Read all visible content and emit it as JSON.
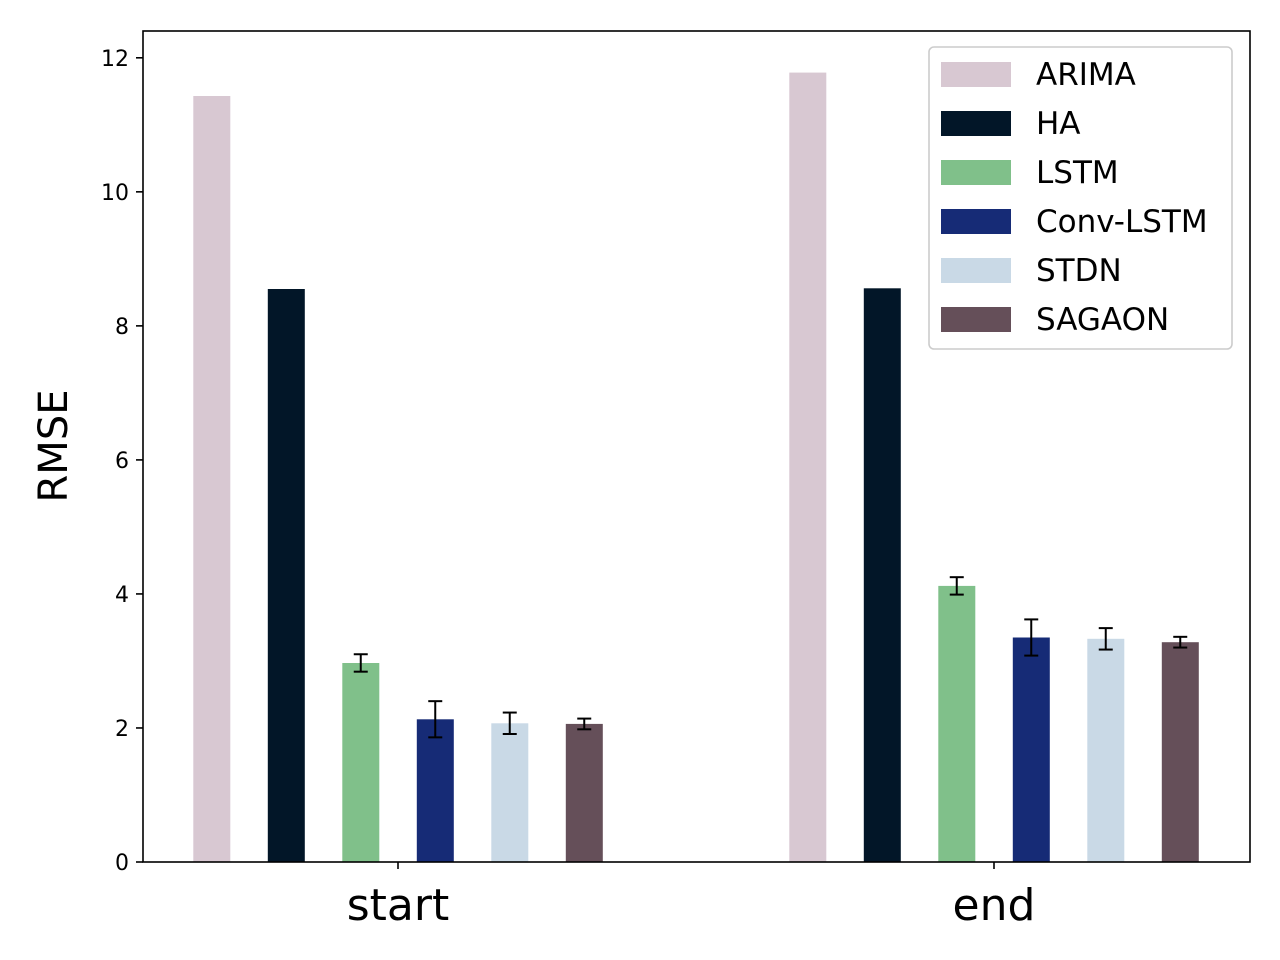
{
  "chart_data": {
    "type": "bar",
    "title": "",
    "xlabel": "",
    "ylabel": "RMSE",
    "categories": [
      "start",
      "end"
    ],
    "ylim": [
      0,
      12.4
    ],
    "yticks": [
      "0",
      "2",
      "4",
      "6",
      "8",
      "10",
      "12"
    ],
    "grid": false,
    "legend_position": "top-right",
    "series": [
      {
        "name": "ARIMA",
        "color": "#d8c8d2",
        "values": [
          11.43,
          11.78
        ],
        "errors": [
          0,
          0
        ]
      },
      {
        "name": "HA",
        "color": "#021628",
        "values": [
          8.55,
          8.56
        ],
        "errors": [
          0,
          0
        ]
      },
      {
        "name": "LSTM",
        "color": "#80c08a",
        "values": [
          2.97,
          4.12
        ],
        "errors": [
          0.13,
          0.13
        ]
      },
      {
        "name": "Conv-LSTM",
        "color": "#162b76",
        "values": [
          2.13,
          3.35
        ],
        "errors": [
          0.27,
          0.27
        ]
      },
      {
        "name": "STDN",
        "color": "#c9d9e6",
        "values": [
          2.07,
          3.33
        ],
        "errors": [
          0.16,
          0.16
        ]
      },
      {
        "name": "SAGAON",
        "color": "#654f59",
        "values": [
          2.06,
          3.28
        ],
        "errors": [
          0.08,
          0.08
        ]
      }
    ]
  }
}
